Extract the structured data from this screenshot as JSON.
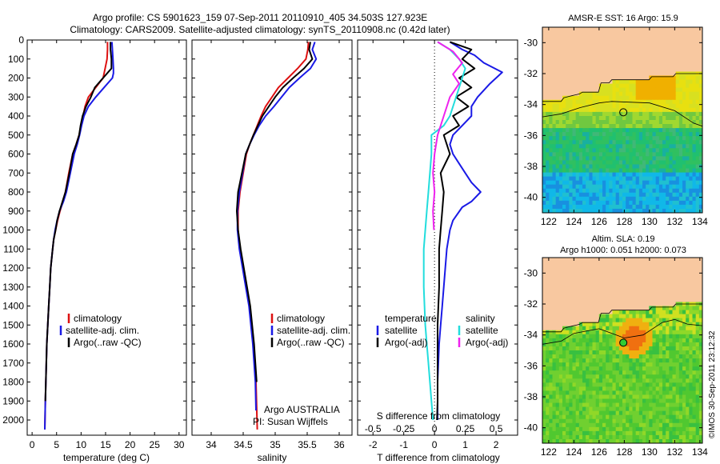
{
  "header": {
    "line1": "Argo profile: CS 5901623_159 07-Sep-2011 20110910_405 34.503S 127.923E",
    "line2": "Climatology: CARS2009. Satellite-adjusted climatology: synTS_20110908.nc (0.42d later)"
  },
  "colors": {
    "climatology": "#dd1111",
    "satellite": "#1a1ae6",
    "argo": "#000000",
    "cyan": "#22dddd",
    "magenta": "#ee22ee",
    "land": "#f8c8a0",
    "marker": "#33cc33"
  },
  "side_text": "©IMOS 30-Sep-2011 23:12:32",
  "chart_data": [
    {
      "type": "line",
      "id": "temperature",
      "xlabel": "temperature (deg C)",
      "ylabel": "",
      "xlim": [
        -1,
        31.5
      ],
      "ylim": [
        0,
        2080
      ],
      "xticks": [
        0,
        5,
        10,
        15,
        20,
        25,
        30
      ],
      "yticks": [
        0,
        100,
        200,
        300,
        400,
        500,
        600,
        700,
        800,
        900,
        1000,
        1100,
        1200,
        1300,
        1400,
        1500,
        1600,
        1700,
        1800,
        1900,
        2000
      ],
      "legend": [
        "climatology",
        "satellite-adj. clim.",
        "Argo(..raw -QC)"
      ],
      "series": [
        {
          "name": "climatology",
          "color": "climatology",
          "x": [
            15.4,
            15.4,
            15.3,
            14.9,
            14.5,
            13.0,
            11.5,
            10.8,
            10.4,
            10.0,
            9.6,
            9.0,
            8.3,
            7.5,
            6.8,
            6.3,
            5.7,
            5.2,
            4.8,
            4.4,
            4.2,
            4.0,
            3.8,
            3.6,
            3.4,
            3.2,
            3.0,
            2.9,
            2.8,
            2.7,
            2.6
          ],
          "y": [
            10,
            50,
            100,
            150,
            200,
            250,
            300,
            350,
            400,
            450,
            500,
            550,
            600,
            700,
            800,
            850,
            900,
            950,
            1000,
            1050,
            1100,
            1150,
            1200,
            1300,
            1400,
            1500,
            1600,
            1700,
            1800,
            1900,
            2050
          ]
        },
        {
          "name": "satellite-adj. clim.",
          "color": "satellite",
          "x": [
            16.3,
            16.4,
            16.5,
            16.6,
            16.6,
            16.4,
            13.0,
            11.5,
            10.6,
            10.1,
            9.7,
            9.2,
            8.6,
            7.8,
            7.0,
            6.4,
            5.6,
            5.1,
            4.7,
            4.4,
            4.2,
            4.0,
            3.8,
            3.6,
            3.4,
            3.2,
            3.0,
            2.9,
            2.8,
            2.7,
            2.6
          ],
          "y": [
            10,
            50,
            100,
            150,
            175,
            200,
            300,
            350,
            400,
            450,
            500,
            550,
            600,
            700,
            800,
            850,
            900,
            950,
            1000,
            1050,
            1100,
            1150,
            1200,
            1300,
            1400,
            1500,
            1600,
            1700,
            1800,
            1900,
            2050
          ]
        },
        {
          "name": "Argo(..raw -QC)",
          "color": "argo",
          "x": [
            16.0,
            16.0,
            16.2,
            16.2,
            15.5,
            12.8,
            12.0,
            11.0,
            10.3,
            9.9,
            9.6,
            9.0,
            8.3,
            7.6,
            6.8,
            6.2,
            5.6,
            5.1,
            4.8,
            4.4,
            4.2,
            4.0,
            3.8,
            3.6,
            3.4,
            3.2,
            3.0,
            2.9,
            2.8,
            2.7
          ],
          "y": [
            10,
            50,
            100,
            150,
            170,
            250,
            300,
            350,
            400,
            450,
            500,
            550,
            600,
            700,
            800,
            850,
            900,
            950,
            1000,
            1050,
            1100,
            1150,
            1200,
            1300,
            1400,
            1500,
            1600,
            1700,
            1800,
            1900
          ]
        }
      ]
    },
    {
      "type": "line",
      "id": "salinity",
      "xlabel": "salinity",
      "ylabel": "",
      "xlim": [
        33.7,
        36.2
      ],
      "ylim": [
        0,
        2080
      ],
      "xticks": [
        34,
        34.5,
        35,
        35.5,
        36
      ],
      "xtick_labels": [
        "34",
        "34.5",
        "35",
        "35.5",
        "36"
      ],
      "legend": [
        "climatology",
        "satellite-adj. clim.",
        "Argo(..raw -QC)"
      ],
      "annotation": [
        "Argo AUSTRALIA",
        "PI: Susan Wijffels"
      ],
      "series": [
        {
          "name": "climatology",
          "color": "climatology",
          "x": [
            35.52,
            35.51,
            35.48,
            35.35,
            35.2,
            35.05,
            34.95,
            34.85,
            34.78,
            34.72,
            34.66,
            34.6,
            34.55,
            34.5,
            34.45,
            34.42,
            34.42,
            34.45,
            34.5,
            34.55,
            34.6,
            34.63,
            34.66,
            34.68,
            34.7,
            34.72
          ],
          "y": [
            10,
            50,
            100,
            150,
            200,
            250,
            300,
            350,
            400,
            450,
            500,
            550,
            600,
            700,
            800,
            900,
            1000,
            1100,
            1200,
            1300,
            1400,
            1500,
            1600,
            1700,
            1800,
            2050
          ]
        },
        {
          "name": "satellite-adj. clim.",
          "color": "satellite",
          "x": [
            35.62,
            35.58,
            35.64,
            35.55,
            35.38,
            35.22,
            35.1,
            34.98,
            34.85,
            34.75,
            34.67,
            34.6,
            34.54,
            34.49,
            34.44,
            34.41,
            34.41,
            34.44,
            34.49,
            34.54,
            34.59,
            34.62,
            34.65,
            34.67,
            34.69,
            34.7
          ],
          "y": [
            10,
            50,
            100,
            150,
            200,
            250,
            300,
            350,
            400,
            450,
            500,
            550,
            600,
            700,
            800,
            900,
            1000,
            1100,
            1200,
            1300,
            1400,
            1500,
            1600,
            1700,
            1800,
            1950
          ]
        },
        {
          "name": "Argo(..raw -QC)",
          "color": "argo",
          "x": [
            35.55,
            35.53,
            35.58,
            35.45,
            35.28,
            35.12,
            35.0,
            34.9,
            34.8,
            34.73,
            34.66,
            34.6,
            34.54,
            34.48,
            34.42,
            34.4,
            34.42,
            34.46,
            34.51,
            34.56,
            34.61,
            34.64,
            34.67,
            34.69,
            34.71
          ],
          "y": [
            10,
            50,
            100,
            150,
            200,
            250,
            300,
            350,
            400,
            450,
            500,
            550,
            600,
            700,
            800,
            900,
            1000,
            1100,
            1200,
            1300,
            1400,
            1500,
            1600,
            1700,
            1800
          ]
        }
      ]
    },
    {
      "type": "line",
      "id": "differences",
      "xlabel": "T difference from climatology",
      "x2label": "S difference from climatology",
      "xlim": [
        -2.5,
        2.7
      ],
      "ylim": [
        0,
        2080
      ],
      "xticks": [
        -2,
        -1,
        0,
        1,
        2
      ],
      "x2ticks": [
        -0.5,
        -0.25,
        0,
        0.25,
        0.5
      ],
      "legend_left": [
        "temperature",
        "satellite",
        "Argo(-adj)"
      ],
      "legend_right": [
        "salinity",
        "satellite",
        "Argo(-adj)"
      ],
      "series": [
        {
          "name": "T satellite",
          "color": "satellite",
          "x": [
            0.5,
            0.9,
            1.3,
            1.6,
            2.2,
            1.8,
            1.4,
            1.2,
            1.2,
            0.9,
            0.6,
            0.5,
            0.6,
            0.8,
            1.0,
            1.2,
            1.5,
            1.2,
            0.9,
            0.6,
            0.5,
            0.4,
            0.35,
            0.3,
            0.25,
            0.2,
            0.15,
            0.1,
            0.1
          ],
          "y": [
            10,
            50,
            80,
            120,
            170,
            230,
            300,
            350,
            400,
            450,
            500,
            550,
            600,
            650,
            700,
            750,
            800,
            850,
            880,
            950,
            1000,
            1100,
            1200,
            1300,
            1400,
            1500,
            1600,
            1800,
            2000
          ]
        },
        {
          "name": "T Argo",
          "color": "argo",
          "x": [
            0.5,
            1.2,
            0.9,
            1.3,
            0.8,
            1.2,
            0.7,
            1.1,
            0.6,
            0.8,
            0.3,
            0.5,
            0.2,
            0.3,
            0.25,
            0.2,
            0.15,
            0.15,
            0.1,
            0.1,
            0.1,
            0.08
          ],
          "y": [
            10,
            50,
            100,
            150,
            200,
            250,
            300,
            350,
            400,
            450,
            500,
            600,
            700,
            800,
            900,
            1000,
            1100,
            1300,
            1500,
            1700,
            1900,
            2000
          ]
        },
        {
          "name": "S satellite",
          "color": "cyan",
          "x": [
            0.1,
            0.5,
            0.8,
            1.0,
            0.9,
            0.7,
            0.5,
            0.3,
            -0.1,
            -0.1,
            -0.15,
            -0.2,
            -0.25,
            -0.3,
            -0.35,
            -0.35,
            -0.3,
            -0.25,
            -0.2,
            -0.15,
            -0.1,
            -0.05
          ],
          "y": [
            10,
            50,
            100,
            150,
            200,
            300,
            400,
            450,
            500,
            600,
            700,
            800,
            900,
            1000,
            1100,
            1300,
            1500,
            1600,
            1700,
            1800,
            1900,
            2000
          ]
        },
        {
          "name": "S Argo",
          "color": "magenta",
          "x": [
            0.1,
            0.6,
            0.9,
            0.6,
            0.8,
            0.5,
            0.3,
            0.1,
            0.0,
            -0.05,
            0.0,
            -0.05,
            -0.02
          ],
          "y": [
            10,
            60,
            120,
            180,
            230,
            300,
            400,
            500,
            600,
            700,
            800,
            900,
            1000
          ]
        }
      ]
    },
    {
      "type": "heatmap",
      "id": "sst_map",
      "title": "AMSR-E SST: 16 Argo: 15.9",
      "xticks": [
        122,
        124,
        126,
        128,
        130,
        132,
        134
      ],
      "yticks": [
        -30,
        -32,
        -34,
        -36,
        -38,
        -40
      ],
      "xlim": [
        121.5,
        134.2
      ],
      "ylim": [
        -41,
        -29
      ],
      "argo_position": [
        127.923,
        -34.503
      ]
    },
    {
      "type": "heatmap",
      "id": "sla_map",
      "title": [
        "Altim. SLA: 0.19",
        "Argo h1000: 0.051 h2000: 0.073"
      ],
      "xticks": [
        122,
        124,
        126,
        128,
        130,
        132,
        134
      ],
      "yticks": [
        -30,
        -32,
        -34,
        -36,
        -38,
        -40
      ],
      "xlim": [
        121.5,
        134.2
      ],
      "ylim": [
        -41,
        -29
      ],
      "argo_position": [
        127.923,
        -34.503
      ]
    }
  ]
}
